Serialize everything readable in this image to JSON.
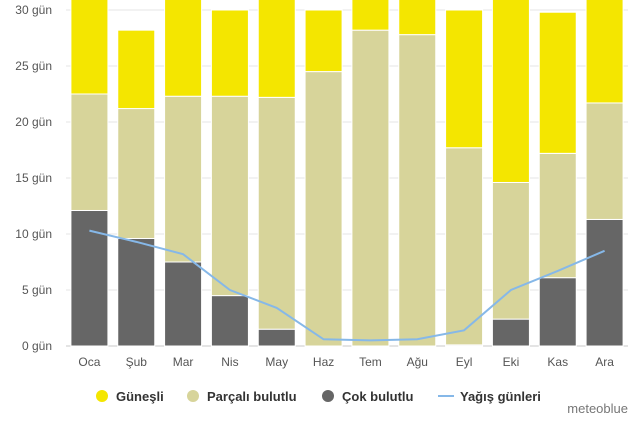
{
  "chart_data": {
    "type": "bar",
    "stacked": true,
    "categories": [
      "Oca",
      "Şub",
      "Mar",
      "Nis",
      "May",
      "Haz",
      "Tem",
      "Ağu",
      "Eyl",
      "Eki",
      "Kas",
      "Ara"
    ],
    "ylim": [
      0,
      30
    ],
    "yticks": [
      "0 gün",
      "5 gün",
      "10 gün",
      "15 gün",
      "20 gün",
      "25 gün",
      "30 gün"
    ],
    "series": [
      {
        "name": "Çok bulutlu",
        "color": "#666666",
        "values": [
          12.1,
          9.6,
          7.5,
          4.5,
          1.5,
          0.0,
          0.0,
          0.0,
          0.1,
          2.4,
          6.1,
          11.3
        ]
      },
      {
        "name": "Parçalı bulutlu",
        "color": "#d7d49a",
        "values": [
          10.4,
          11.6,
          14.8,
          17.8,
          20.7,
          24.5,
          28.2,
          27.8,
          17.6,
          12.2,
          11.1,
          10.4
        ]
      },
      {
        "name": "Güneşli",
        "color": "#f4e600",
        "values": [
          8.5,
          7.0,
          8.7,
          7.7,
          8.8,
          5.5,
          2.8,
          3.2,
          12.3,
          16.4,
          12.6,
          9.3
        ]
      }
    ],
    "line": {
      "name": "Yağış günleri",
      "color": "#86b8e8",
      "values": [
        10.3,
        9.3,
        8.2,
        5.0,
        3.4,
        0.6,
        0.5,
        0.6,
        1.4,
        5.0,
        6.7,
        8.5
      ]
    },
    "legend": [
      "Güneşli",
      "Parçalı bulutlu",
      "Çok bulutlu",
      "Yağış günleri"
    ],
    "legend_position": "bottom",
    "grid": true
  },
  "credit": "meteoblue"
}
